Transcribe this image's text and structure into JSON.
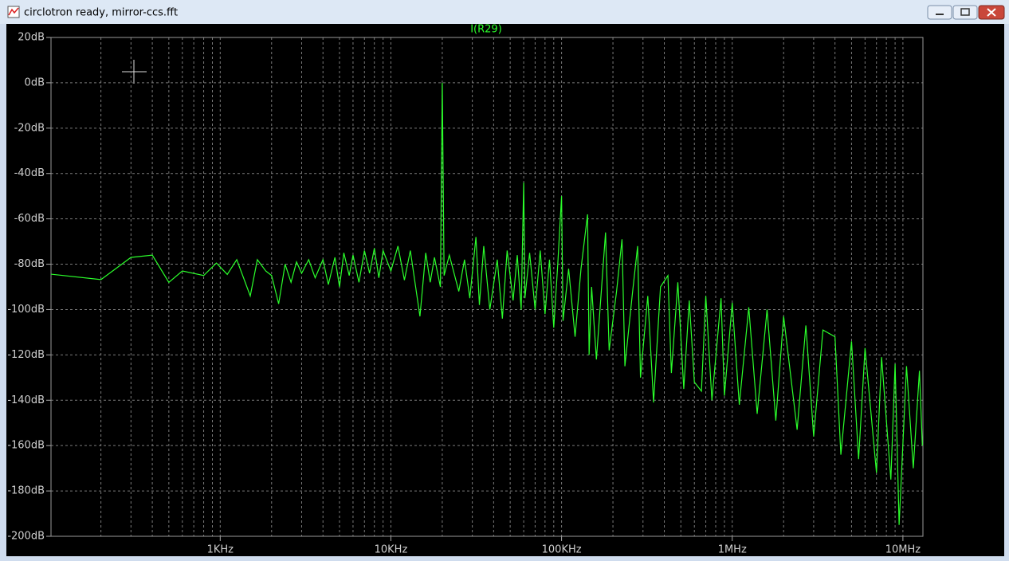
{
  "window": {
    "title": "circlotron ready, mirror-ccs.fft"
  },
  "chart_data": {
    "type": "line",
    "x_log": true,
    "grid": true,
    "xlim": [
      102,
      13100000
    ],
    "ylim": [
      -200,
      20
    ],
    "xticks": [
      {
        "value": 1000,
        "label": "1KHz"
      },
      {
        "value": 10000,
        "label": "10KHz"
      },
      {
        "value": 100000,
        "label": "100KHz"
      },
      {
        "value": 1000000,
        "label": "1MHz"
      },
      {
        "value": 10000000,
        "label": "10MHz"
      }
    ],
    "x_minor_grid": [
      200,
      300,
      400,
      500,
      600,
      700,
      800,
      900,
      2000,
      3000,
      4000,
      5000,
      6000,
      7000,
      8000,
      9000,
      20000,
      30000,
      40000,
      50000,
      60000,
      70000,
      80000,
      90000,
      200000,
      300000,
      400000,
      500000,
      600000,
      700000,
      800000,
      900000,
      2000000,
      3000000,
      4000000,
      5000000,
      6000000,
      7000000,
      8000000,
      9000000
    ],
    "yticks": [
      {
        "value": 20,
        "label": "20dB"
      },
      {
        "value": 0,
        "label": "0dB"
      },
      {
        "value": -20,
        "label": "-20dB"
      },
      {
        "value": -40,
        "label": "-40dB"
      },
      {
        "value": -60,
        "label": "-60dB"
      },
      {
        "value": -80,
        "label": "-80dB"
      },
      {
        "value": -100,
        "label": "-100dB"
      },
      {
        "value": -120,
        "label": "-120dB"
      },
      {
        "value": -140,
        "label": "-140dB"
      },
      {
        "value": -160,
        "label": "-160dB"
      },
      {
        "value": -180,
        "label": "-180dB"
      },
      {
        "value": -200,
        "label": "-200dB"
      }
    ],
    "x": [
      102,
      200,
      300,
      400,
      500,
      600,
      800,
      950,
      1100,
      1250,
      1500,
      1650,
      1850,
      2000,
      2200,
      2400,
      2600,
      2800,
      3000,
      3300,
      3600,
      4000,
      4300,
      4700,
      5000,
      5300,
      5700,
      6000,
      6500,
      7000,
      7500,
      8000,
      8500,
      9000,
      10000,
      11000,
      12000,
      13000,
      14800,
      16000,
      17000,
      18000,
      19500,
      20000,
      20500,
      22000,
      25000,
      27000,
      29000,
      31500,
      33000,
      35000,
      38000,
      42000,
      45000,
      48000,
      52000,
      55000,
      58000,
      60000,
      61000,
      65000,
      70000,
      75000,
      80000,
      85000,
      90000,
      95000,
      100000,
      102000,
      110000,
      120000,
      130000,
      142000,
      145000,
      150000,
      160000,
      181000,
      190000,
      210000,
      226000,
      235000,
      260000,
      279000,
      290000,
      320000,
      346000,
      380000,
      420000,
      440000,
      480000,
      520000,
      560000,
      600000,
      660000,
      700000,
      760000,
      860000,
      900000,
      1000000,
      1100000,
      1250000,
      1400000,
      1600000,
      1800000,
      2000000,
      2400000,
      2700000,
      3000000,
      3400000,
      4000000,
      4330000,
      5000000,
      5500000,
      6000000,
      7000000,
      7500000,
      8500000,
      9000000,
      9500000,
      10500000,
      11500000,
      12500000,
      13000000
    ],
    "series": [
      {
        "name": "I(R29)",
        "color": "#2bff2b",
        "values": [
          -84.4,
          -86.8,
          -77,
          -76,
          -88,
          -83,
          -85,
          -79.5,
          -84.5,
          -78,
          -94,
          -78,
          -83,
          -85,
          -97.5,
          -80,
          -88,
          -79,
          -84,
          -78,
          -86,
          -78,
          -89,
          -77,
          -90,
          -75,
          -85,
          -76,
          -88,
          -74,
          -84,
          -73,
          -86,
          -74,
          -83,
          -72,
          -87,
          -74,
          -103,
          -75,
          -88,
          -77,
          -90,
          0,
          -85,
          -76,
          -92,
          -78,
          -95,
          -68,
          -98,
          -72,
          -100,
          -78,
          -104,
          -74,
          -96,
          -76,
          -100,
          -44,
          -95,
          -75,
          -100,
          -74,
          -102,
          -78,
          -108,
          -80,
          -50,
          -105,
          -82,
          -112,
          -82,
          -58,
          -120,
          -90,
          -122,
          -66,
          -118,
          -92,
          -69,
          -125,
          -93,
          -72,
          -130,
          -94,
          -141,
          -90,
          -85,
          -128,
          -88,
          -135,
          -96,
          -132,
          -136,
          -94,
          -140,
          -95,
          -138,
          -97,
          -142,
          -99,
          -146,
          -100,
          -149,
          -103,
          -153,
          -107,
          -156,
          -109,
          -112,
          -164,
          -114,
          -166,
          -117,
          -172,
          -121,
          -175,
          -124,
          -195,
          -125,
          -170,
          -127,
          -160
        ]
      }
    ]
  }
}
